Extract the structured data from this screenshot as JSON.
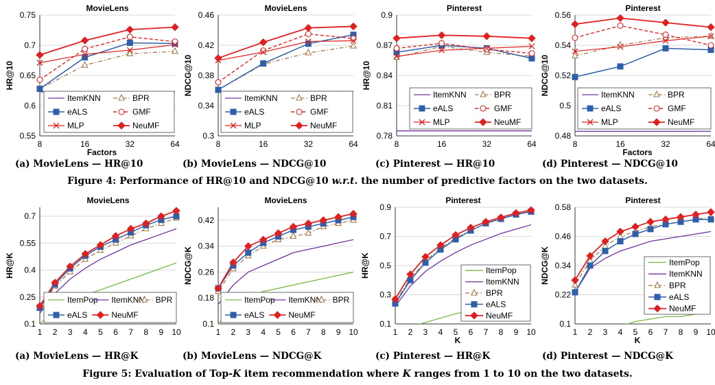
{
  "figure4": {
    "caption_prefix": "Figure 4: Performance of HR@10 and NDCG@10",
    "caption_wrt": "w.r.t.",
    "caption_suffix": "the number of predictive factors on the two datasets.",
    "subcaptions": [
      "(a) MovieLens — HR@10",
      "(b) MovieLens — NDCG@10",
      "(c) Pinterest — HR@10",
      "(d) Pinterest — NDCG@10"
    ]
  },
  "figure5": {
    "caption_prefix": "Figure 5: Evaluation of Top-",
    "caption_k": "K",
    "caption_middle": "item recommendation where",
    "caption_k2": "K",
    "caption_suffix": "ranges from 1 to 10 on the two datasets.",
    "subcaptions": [
      "(a) MovieLens — HR@K",
      "(b) MovieLens — NDCG@K",
      "(c) Pinterest — HR@K",
      "(d) Pinterest — NDCG@K"
    ]
  },
  "colors": {
    "ItemPop": "#76b840",
    "ItemKNN": "#7030a0",
    "BPR": "#a5784b",
    "eALS": "#2e5fa8",
    "GMF": "#e02020",
    "MLP": "#e02020",
    "NeuMF": "#e02020"
  },
  "chart_data": [
    {
      "type": "line",
      "title": "MovieLens",
      "xlabel": "Factors",
      "ylabel": "HR@10",
      "x": [
        "8",
        "16",
        "32",
        "64"
      ],
      "ylim": [
        0.55,
        0.75
      ],
      "yticks": [
        "0.55",
        "0.6",
        "0.65",
        "0.7",
        "0.75"
      ],
      "legend_cols": 2,
      "legend": "bottom-right",
      "series": [
        {
          "name": "ItemKNN",
          "values": [
            0.623,
            0.623,
            0.623,
            0.623
          ]
        },
        {
          "name": "BPR",
          "values": [
            0.628,
            0.667,
            0.686,
            0.69
          ]
        },
        {
          "name": "eALS",
          "values": [
            0.628,
            0.68,
            0.704,
            0.703
          ]
        },
        {
          "name": "GMF",
          "values": [
            0.643,
            0.694,
            0.714,
            0.706
          ]
        },
        {
          "name": "MLP",
          "values": [
            0.671,
            0.685,
            0.692,
            0.701
          ]
        },
        {
          "name": "NeuMF",
          "values": [
            0.684,
            0.708,
            0.726,
            0.73
          ]
        }
      ]
    },
    {
      "type": "line",
      "title": "MovieLens",
      "xlabel": "",
      "ylabel": "NDCG@10",
      "x": [
        "8",
        "16",
        "32",
        "64"
      ],
      "ylim": [
        0.3,
        0.46
      ],
      "yticks": [
        "0.3",
        "0.34",
        "0.38",
        "0.42",
        "0.46"
      ],
      "legend_cols": 2,
      "legend": "bottom-right",
      "series": [
        {
          "name": "ItemKNN",
          "values": [
            0.359,
            0.359,
            0.359,
            0.359
          ]
        },
        {
          "name": "BPR",
          "values": [
            0.361,
            0.395,
            0.41,
            0.419
          ]
        },
        {
          "name": "eALS",
          "values": [
            0.361,
            0.396,
            0.422,
            0.434
          ]
        },
        {
          "name": "GMF",
          "values": [
            0.371,
            0.413,
            0.435,
            0.429
          ]
        },
        {
          "name": "MLP",
          "values": [
            0.4,
            0.411,
            0.425,
            0.426
          ]
        },
        {
          "name": "NeuMF",
          "values": [
            0.403,
            0.424,
            0.443,
            0.445
          ]
        }
      ]
    },
    {
      "type": "line",
      "title": "Pinterest",
      "xlabel": "",
      "ylabel": "HR@10",
      "x": [
        "8",
        "16",
        "32",
        "64"
      ],
      "ylim": [
        0.78,
        0.9
      ],
      "yticks": [
        "0.78",
        "0.81",
        "0.84",
        "0.87",
        "0.9"
      ],
      "legend_cols": 2,
      "legend": "bottom-right",
      "series": [
        {
          "name": "ItemKNN",
          "values": [
            0.785,
            0.785,
            0.785,
            0.785
          ]
        },
        {
          "name": "BPR",
          "values": [
            0.858,
            0.869,
            0.863,
            0.859
          ]
        },
        {
          "name": "eALS",
          "values": [
            0.863,
            0.87,
            0.867,
            0.857
          ]
        },
        {
          "name": "GMF",
          "values": [
            0.867,
            0.872,
            0.866,
            0.862
          ]
        },
        {
          "name": "MLP",
          "values": [
            0.859,
            0.865,
            0.867,
            0.869
          ]
        },
        {
          "name": "NeuMF",
          "values": [
            0.877,
            0.88,
            0.879,
            0.877
          ]
        }
      ]
    },
    {
      "type": "line",
      "title": "Pinterest",
      "xlabel": "Factors",
      "ylabel": "NDCG@10",
      "x": [
        "8",
        "16",
        "32",
        "64"
      ],
      "ylim": [
        0.48,
        0.56
      ],
      "yticks": [
        "0.48",
        "0.5",
        "0.52",
        "0.54",
        "0.56"
      ],
      "legend_cols": 2,
      "legend": "bottom-right",
      "series": [
        {
          "name": "ItemKNN",
          "values": [
            0.483,
            0.483,
            0.483,
            0.483
          ]
        },
        {
          "name": "BPR",
          "values": [
            0.533,
            0.54,
            0.545,
            0.546
          ]
        },
        {
          "name": "eALS",
          "values": [
            0.519,
            0.526,
            0.538,
            0.537
          ]
        },
        {
          "name": "GMF",
          "values": [
            0.545,
            0.553,
            0.547,
            0.54
          ]
        },
        {
          "name": "MLP",
          "values": [
            0.536,
            0.539,
            0.543,
            0.546
          ]
        },
        {
          "name": "NeuMF",
          "values": [
            0.554,
            0.558,
            0.555,
            0.552
          ]
        }
      ]
    },
    {
      "type": "line",
      "title": "MovieLens",
      "xlabel": "",
      "ylabel": "HR@K",
      "x": [
        "1",
        "2",
        "3",
        "4",
        "5",
        "6",
        "7",
        "8",
        "9",
        "10"
      ],
      "ylim": [
        0.1,
        0.75
      ],
      "yticks": [
        "0.1",
        "0.25",
        "0.4",
        "0.55",
        "0.7"
      ],
      "legend_cols": 3,
      "legend": "bottom-right",
      "series": [
        {
          "name": "ItemPop",
          "values": [
            0.1,
            0.17,
            0.22,
            0.26,
            0.29,
            0.32,
            0.35,
            0.38,
            0.41,
            0.44
          ]
        },
        {
          "name": "ItemKNN",
          "values": [
            0.16,
            0.27,
            0.35,
            0.41,
            0.46,
            0.5,
            0.54,
            0.57,
            0.6,
            0.63
          ]
        },
        {
          "name": "BPR",
          "values": [
            0.19,
            0.31,
            0.39,
            0.46,
            0.51,
            0.55,
            0.59,
            0.63,
            0.66,
            0.69
          ]
        },
        {
          "name": "eALS",
          "values": [
            0.19,
            0.32,
            0.41,
            0.48,
            0.53,
            0.57,
            0.61,
            0.65,
            0.68,
            0.7
          ]
        },
        {
          "name": "NeuMF",
          "values": [
            0.2,
            0.33,
            0.42,
            0.49,
            0.54,
            0.59,
            0.63,
            0.66,
            0.7,
            0.73
          ]
        }
      ]
    },
    {
      "type": "line",
      "title": "MovieLens",
      "xlabel": "",
      "ylabel": "NDCG@K",
      "x": [
        "1",
        "2",
        "3",
        "4",
        "5",
        "6",
        "7",
        "8",
        "9",
        "10"
      ],
      "ylim": [
        0.1,
        0.46
      ],
      "yticks": [
        "0.1",
        "0.18",
        "0.26",
        "0.34",
        "0.42"
      ],
      "legend_cols": 3,
      "legend": "bottom-right",
      "series": [
        {
          "name": "ItemPop",
          "values": [
            0.1,
            0.15,
            0.18,
            0.2,
            0.21,
            0.22,
            0.23,
            0.24,
            0.25,
            0.26
          ]
        },
        {
          "name": "ItemKNN",
          "values": [
            0.16,
            0.22,
            0.26,
            0.28,
            0.3,
            0.32,
            0.33,
            0.34,
            0.35,
            0.36
          ]
        },
        {
          "name": "BPR",
          "values": [
            0.2,
            0.27,
            0.31,
            0.34,
            0.36,
            0.37,
            0.38,
            0.4,
            0.41,
            0.42
          ]
        },
        {
          "name": "eALS",
          "values": [
            0.21,
            0.28,
            0.32,
            0.35,
            0.37,
            0.39,
            0.4,
            0.41,
            0.42,
            0.43
          ]
        },
        {
          "name": "NeuMF",
          "values": [
            0.21,
            0.29,
            0.34,
            0.36,
            0.38,
            0.4,
            0.41,
            0.42,
            0.43,
            0.44
          ]
        }
      ]
    },
    {
      "type": "line",
      "title": "Pinterest",
      "xlabel": "K",
      "ylabel": "HR@K",
      "x": [
        "1",
        "2",
        "3",
        "4",
        "5",
        "6",
        "7",
        "8",
        "9",
        "10"
      ],
      "ylim": [
        0.1,
        0.9
      ],
      "yticks": [
        "0.1",
        "0.3",
        "0.5",
        "0.7",
        "0.9"
      ],
      "legend_cols": 1,
      "legend": "bottom-right",
      "series": [
        {
          "name": "ItemPop",
          "values": [
            0.05,
            0.08,
            0.11,
            0.14,
            0.17,
            0.19,
            0.21,
            0.23,
            0.25,
            0.27
          ]
        },
        {
          "name": "ItemKNN",
          "values": [
            0.22,
            0.36,
            0.46,
            0.53,
            0.59,
            0.64,
            0.68,
            0.72,
            0.75,
            0.78
          ]
        },
        {
          "name": "BPR",
          "values": [
            0.25,
            0.41,
            0.53,
            0.62,
            0.69,
            0.74,
            0.79,
            0.82,
            0.85,
            0.87
          ]
        },
        {
          "name": "eALS",
          "values": [
            0.24,
            0.4,
            0.52,
            0.61,
            0.68,
            0.74,
            0.79,
            0.82,
            0.85,
            0.87
          ]
        },
        {
          "name": "NeuMF",
          "values": [
            0.27,
            0.44,
            0.56,
            0.64,
            0.71,
            0.76,
            0.8,
            0.83,
            0.86,
            0.88
          ]
        }
      ]
    },
    {
      "type": "line",
      "title": "Pinterest",
      "xlabel": "K",
      "ylabel": "NDCG@K",
      "x": [
        "1",
        "2",
        "3",
        "4",
        "5",
        "6",
        "7",
        "8",
        "9",
        "10"
      ],
      "ylim": [
        0.1,
        0.58
      ],
      "yticks": [
        "0.1",
        "0.22",
        "0.34",
        "0.46",
        "0.58"
      ],
      "legend_cols": 1,
      "legend": "right",
      "series": [
        {
          "name": "ItemPop",
          "values": [
            0.05,
            0.07,
            0.08,
            0.09,
            0.11,
            0.12,
            0.13,
            0.13,
            0.14,
            0.15
          ]
        },
        {
          "name": "ItemKNN",
          "values": [
            0.23,
            0.33,
            0.37,
            0.4,
            0.42,
            0.44,
            0.45,
            0.46,
            0.47,
            0.48
          ]
        },
        {
          "name": "BPR",
          "values": [
            0.26,
            0.36,
            0.42,
            0.46,
            0.48,
            0.5,
            0.51,
            0.52,
            0.53,
            0.54
          ]
        },
        {
          "name": "eALS",
          "values": [
            0.23,
            0.34,
            0.4,
            0.44,
            0.47,
            0.49,
            0.51,
            0.52,
            0.53,
            0.53
          ]
        },
        {
          "name": "NeuMF",
          "values": [
            0.28,
            0.38,
            0.44,
            0.48,
            0.5,
            0.52,
            0.53,
            0.54,
            0.55,
            0.56
          ]
        }
      ]
    }
  ]
}
